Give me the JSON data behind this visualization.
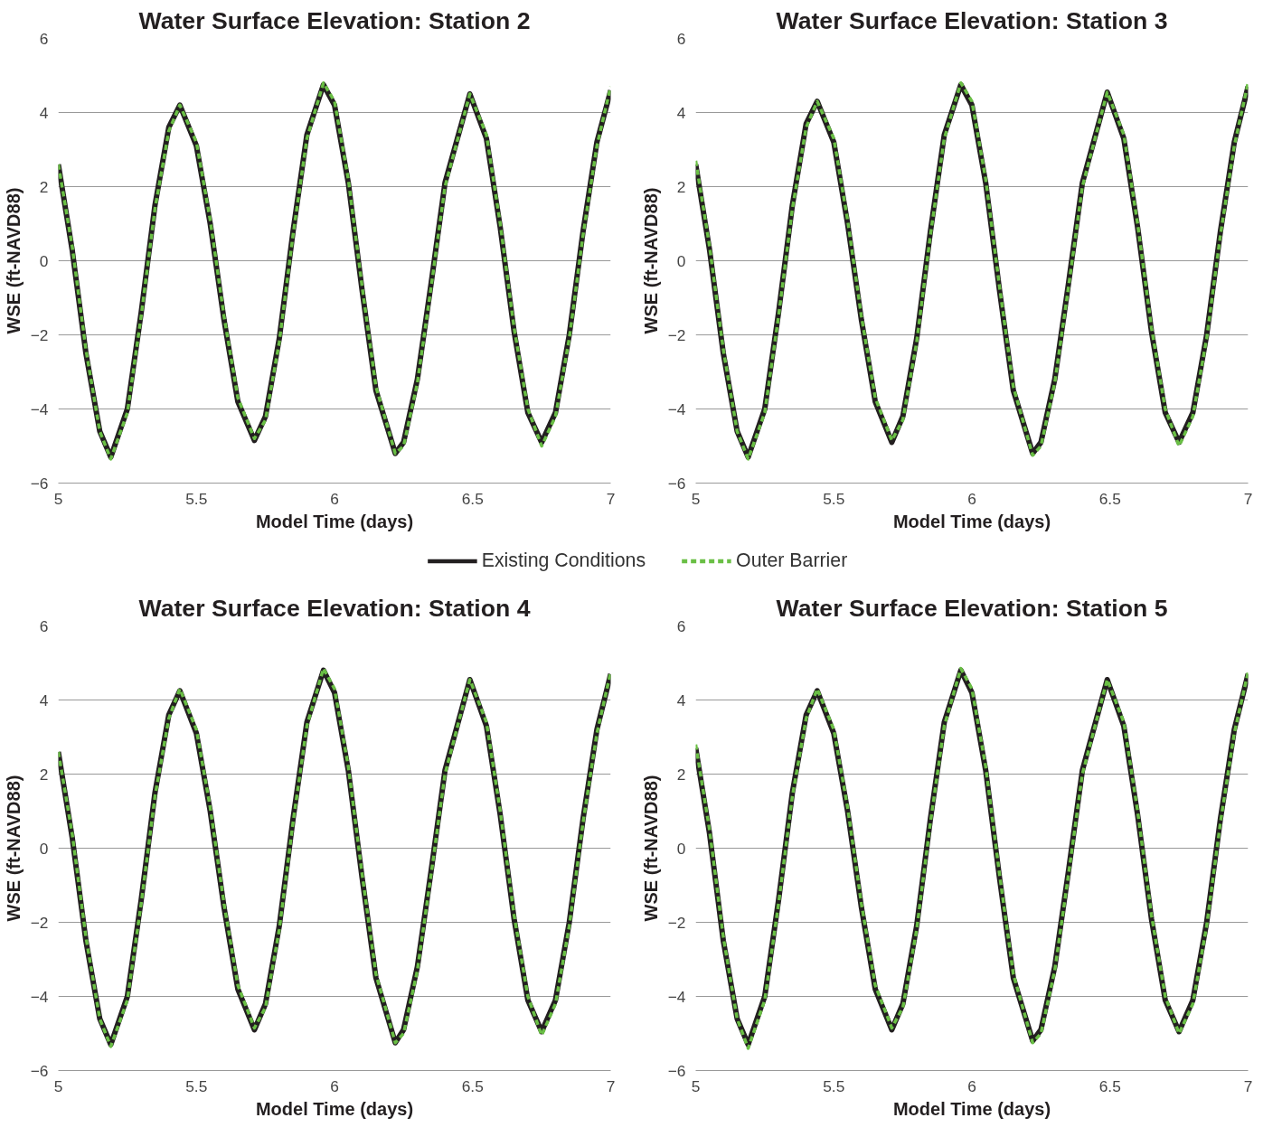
{
  "chart_data": [
    {
      "type": "line",
      "title": "Water Surface Elevation: Station 2",
      "xlabel": "Model Time (days)",
      "ylabel": "WSE (ft-NAVD88)",
      "xlim": [
        5,
        7
      ],
      "ylim": [
        -6,
        6
      ],
      "xticks": [
        5,
        5.5,
        6,
        6.5,
        7
      ],
      "yticks": [
        -6,
        -4,
        -2,
        0,
        2,
        4,
        6
      ],
      "grid": "y",
      "legend": "bottom",
      "x": [
        5,
        5.05,
        5.1,
        5.15,
        5.19,
        5.25,
        5.3,
        5.35,
        5.4,
        5.44,
        5.5,
        5.55,
        5.6,
        5.65,
        5.71,
        5.75,
        5.8,
        5.85,
        5.9,
        5.96,
        6,
        6.05,
        6.1,
        6.15,
        6.22,
        6.25,
        6.3,
        6.35,
        6.4,
        6.49,
        6.55,
        6.6,
        6.65,
        6.7,
        6.75,
        6.8,
        6.85,
        6.9,
        6.95,
        7
      ],
      "series": [
        {
          "name": "Existing Conditions",
          "color": "#231f20",
          "line_style": "solid",
          "values": [
            2.6,
            0.3,
            -2.5,
            -4.6,
            -5.3,
            -4.0,
            -1.4,
            1.5,
            3.6,
            4.2,
            3.1,
            1.0,
            -1.6,
            -3.8,
            -4.85,
            -4.2,
            -2.1,
            0.8,
            3.4,
            4.75,
            4.2,
            2.1,
            -0.8,
            -3.5,
            -5.2,
            -4.9,
            -3.2,
            -0.6,
            2.1,
            4.5,
            3.3,
            0.9,
            -1.9,
            -4.1,
            -4.9,
            -4.1,
            -2.0,
            0.8,
            3.2,
            4.6
          ]
        },
        {
          "name": "Outer Barrier",
          "color": "#6abf45",
          "line_style": "dashed",
          "values": [
            2.6,
            0.4,
            -2.4,
            -4.6,
            -5.35,
            -4.1,
            -1.5,
            1.4,
            3.5,
            4.2,
            3.2,
            1.1,
            -1.5,
            -3.7,
            -4.8,
            -4.3,
            -2.2,
            0.7,
            3.3,
            4.8,
            4.3,
            2.2,
            -0.7,
            -3.4,
            -5.2,
            -5.0,
            -3.3,
            -0.7,
            2.0,
            4.5,
            3.4,
            1.0,
            -1.8,
            -4.0,
            -5.0,
            -4.2,
            -2.1,
            0.7,
            3.1,
            4.7
          ]
        }
      ]
    },
    {
      "type": "line",
      "title": "Water Surface Elevation: Station 3",
      "xlabel": "Model Time (days)",
      "ylabel": "WSE (ft-NAVD88)",
      "xlim": [
        5,
        7
      ],
      "ylim": [
        -6,
        6
      ],
      "xticks": [
        5,
        5.5,
        6,
        6.5,
        7
      ],
      "yticks": [
        -6,
        -4,
        -2,
        0,
        2,
        4,
        6
      ],
      "grid": "y",
      "x": [
        5,
        5.05,
        5.1,
        5.15,
        5.19,
        5.25,
        5.3,
        5.35,
        5.4,
        5.44,
        5.5,
        5.55,
        5.6,
        5.65,
        5.71,
        5.75,
        5.8,
        5.85,
        5.9,
        5.96,
        6,
        6.05,
        6.1,
        6.15,
        6.22,
        6.25,
        6.3,
        6.35,
        6.4,
        6.49,
        6.55,
        6.6,
        6.65,
        6.7,
        6.75,
        6.8,
        6.85,
        6.9,
        6.95,
        7
      ],
      "series": [
        {
          "color": "#231f20",
          "line_style": "solid",
          "values": [
            2.6,
            0.3,
            -2.5,
            -4.6,
            -5.3,
            -4.0,
            -1.4,
            1.5,
            3.7,
            4.3,
            3.2,
            1.0,
            -1.6,
            -3.8,
            -4.9,
            -4.2,
            -2.1,
            0.8,
            3.4,
            4.75,
            4.2,
            2.1,
            -0.8,
            -3.5,
            -5.2,
            -4.9,
            -3.2,
            -0.6,
            2.1,
            4.55,
            3.3,
            0.9,
            -1.9,
            -4.1,
            -4.9,
            -4.1,
            -2.0,
            0.8,
            3.2,
            4.7
          ]
        },
        {
          "color": "#6abf45",
          "line_style": "dashed",
          "values": [
            2.7,
            0.4,
            -2.4,
            -4.6,
            -5.35,
            -4.1,
            -1.5,
            1.4,
            3.6,
            4.3,
            3.3,
            1.1,
            -1.5,
            -3.7,
            -4.85,
            -4.3,
            -2.2,
            0.7,
            3.3,
            4.8,
            4.3,
            2.2,
            -0.7,
            -3.4,
            -5.25,
            -5.0,
            -3.3,
            -0.7,
            2.0,
            4.55,
            3.4,
            1.0,
            -1.8,
            -4.0,
            -5.0,
            -4.2,
            -2.1,
            0.7,
            3.1,
            4.8
          ]
        }
      ]
    },
    {
      "type": "line",
      "title": "Water Surface Elevation: Station 4",
      "xlabel": "Model Time (days)",
      "ylabel": "WSE (ft-NAVD88)",
      "xlim": [
        5,
        7
      ],
      "ylim": [
        -6,
        6
      ],
      "xticks": [
        5,
        5.5,
        6,
        6.5,
        7
      ],
      "yticks": [
        -6,
        -4,
        -2,
        0,
        2,
        4,
        6
      ],
      "grid": "y",
      "x": [
        5,
        5.05,
        5.1,
        5.15,
        5.19,
        5.25,
        5.3,
        5.35,
        5.4,
        5.44,
        5.5,
        5.55,
        5.6,
        5.65,
        5.71,
        5.75,
        5.8,
        5.85,
        5.9,
        5.96,
        6,
        6.05,
        6.1,
        6.15,
        6.22,
        6.25,
        6.3,
        6.35,
        6.4,
        6.49,
        6.55,
        6.6,
        6.65,
        6.7,
        6.75,
        6.8,
        6.85,
        6.9,
        6.95,
        7
      ],
      "series": [
        {
          "color": "#231f20",
          "line_style": "solid",
          "values": [
            2.6,
            0.3,
            -2.5,
            -4.6,
            -5.3,
            -4.0,
            -1.4,
            1.5,
            3.6,
            4.25,
            3.1,
            1.0,
            -1.6,
            -3.8,
            -4.9,
            -4.2,
            -2.1,
            0.8,
            3.4,
            4.8,
            4.2,
            2.1,
            -0.8,
            -3.5,
            -5.25,
            -4.9,
            -3.2,
            -0.6,
            2.1,
            4.55,
            3.3,
            0.9,
            -1.9,
            -4.1,
            -4.95,
            -4.1,
            -2.0,
            0.8,
            3.2,
            4.7
          ]
        },
        {
          "color": "#6abf45",
          "line_style": "dashed",
          "values": [
            2.6,
            0.4,
            -2.4,
            -4.6,
            -5.35,
            -4.1,
            -1.5,
            1.4,
            3.5,
            4.3,
            3.2,
            1.1,
            -1.5,
            -3.7,
            -4.85,
            -4.3,
            -2.2,
            0.7,
            3.3,
            4.85,
            4.3,
            2.2,
            -0.7,
            -3.4,
            -5.25,
            -5.0,
            -3.3,
            -0.7,
            2.0,
            4.55,
            3.4,
            1.0,
            -1.8,
            -4.0,
            -5.05,
            -4.2,
            -2.1,
            0.7,
            3.1,
            4.75
          ]
        }
      ]
    },
    {
      "type": "line",
      "title": "Water Surface Elevation: Station 5",
      "xlabel": "Model Time (days)",
      "ylabel": "WSE (ft-NAVD88)",
      "xlim": [
        5,
        7
      ],
      "ylim": [
        -6,
        6
      ],
      "xticks": [
        5,
        5.5,
        6,
        6.5,
        7
      ],
      "yticks": [
        -6,
        -4,
        -2,
        0,
        2,
        4,
        6
      ],
      "grid": "y",
      "x": [
        5,
        5.05,
        5.1,
        5.15,
        5.19,
        5.25,
        5.3,
        5.35,
        5.4,
        5.44,
        5.5,
        5.55,
        5.6,
        5.65,
        5.71,
        5.75,
        5.8,
        5.85,
        5.9,
        5.96,
        6,
        6.05,
        6.1,
        6.15,
        6.22,
        6.25,
        6.3,
        6.35,
        6.4,
        6.49,
        6.55,
        6.6,
        6.65,
        6.7,
        6.75,
        6.8,
        6.85,
        6.9,
        6.95,
        7
      ],
      "series": [
        {
          "color": "#231f20",
          "line_style": "solid",
          "values": [
            2.7,
            0.4,
            -2.5,
            -4.6,
            -5.3,
            -4.0,
            -1.4,
            1.5,
            3.6,
            4.25,
            3.1,
            1.0,
            -1.6,
            -3.8,
            -4.9,
            -4.2,
            -2.1,
            0.8,
            3.4,
            4.8,
            4.2,
            2.1,
            -0.8,
            -3.5,
            -5.2,
            -4.9,
            -3.2,
            -0.6,
            2.1,
            4.55,
            3.3,
            0.9,
            -1.9,
            -4.1,
            -4.95,
            -4.1,
            -2.0,
            0.8,
            3.2,
            4.7
          ]
        },
        {
          "color": "#6abf45",
          "line_style": "dashed",
          "values": [
            2.8,
            0.5,
            -2.4,
            -4.6,
            -5.4,
            -4.1,
            -1.5,
            1.4,
            3.5,
            4.3,
            3.2,
            1.1,
            -1.5,
            -3.7,
            -4.85,
            -4.3,
            -2.2,
            0.7,
            3.3,
            4.85,
            4.3,
            2.2,
            -0.7,
            -3.4,
            -5.25,
            -5.0,
            -3.3,
            -0.7,
            2.0,
            4.55,
            3.4,
            1.0,
            -1.8,
            -4.0,
            -5.0,
            -4.2,
            -2.1,
            0.7,
            3.1,
            4.75
          ]
        }
      ]
    }
  ]
}
